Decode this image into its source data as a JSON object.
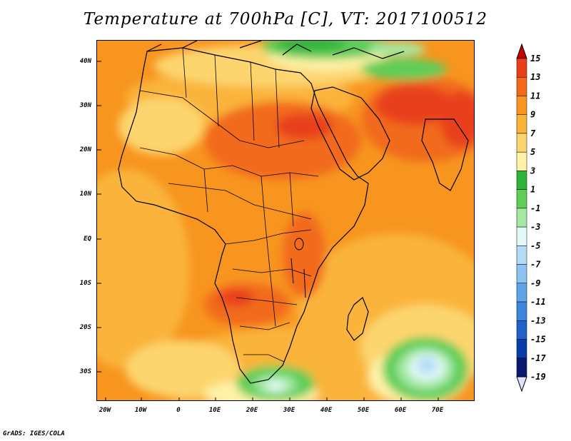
{
  "title": "Temperature at 700hPa [C], VT: 2017100512",
  "footer": "GrADS: IGES/COLA",
  "map": {
    "lon_labels": [
      "20W",
      "10W",
      "0",
      "10E",
      "20E",
      "30E",
      "40E",
      "50E",
      "60E",
      "70E"
    ],
    "lat_labels": [
      "40N",
      "30N",
      "20N",
      "10N",
      "EQ",
      "10S",
      "20S",
      "30S"
    ]
  },
  "colorbar": {
    "levels": [
      {
        "label": "15",
        "color": "#a50000"
      },
      {
        "label": "13",
        "color": "#e8401c"
      },
      {
        "label": "11",
        "color": "#f26a1a"
      },
      {
        "label": "9",
        "color": "#f7951f"
      },
      {
        "label": "7",
        "color": "#fab43a"
      },
      {
        "label": "5",
        "color": "#fdd56e"
      },
      {
        "label": "3",
        "color": "#fff2a8"
      },
      {
        "label": "1",
        "color": "#30b33c"
      },
      {
        "label": "-1",
        "color": "#5fcd58"
      },
      {
        "label": "-3",
        "color": "#a5e8a2"
      },
      {
        "label": "-5",
        "color": "#e2f9f7"
      },
      {
        "label": "-7",
        "color": "#b4dcf6"
      },
      {
        "label": "-9",
        "color": "#8cc3f0"
      },
      {
        "label": "-11",
        "color": "#5ea5e8"
      },
      {
        "label": "-13",
        "color": "#3c87dc"
      },
      {
        "label": "-15",
        "color": "#1e63c8"
      },
      {
        "label": "-17",
        "color": "#0a3ca8"
      },
      {
        "label": "-19",
        "color": "#0a1a6e"
      }
    ],
    "top_arrow_color": "#c00000",
    "bottom_arrow_color": "#e0e0ff"
  }
}
